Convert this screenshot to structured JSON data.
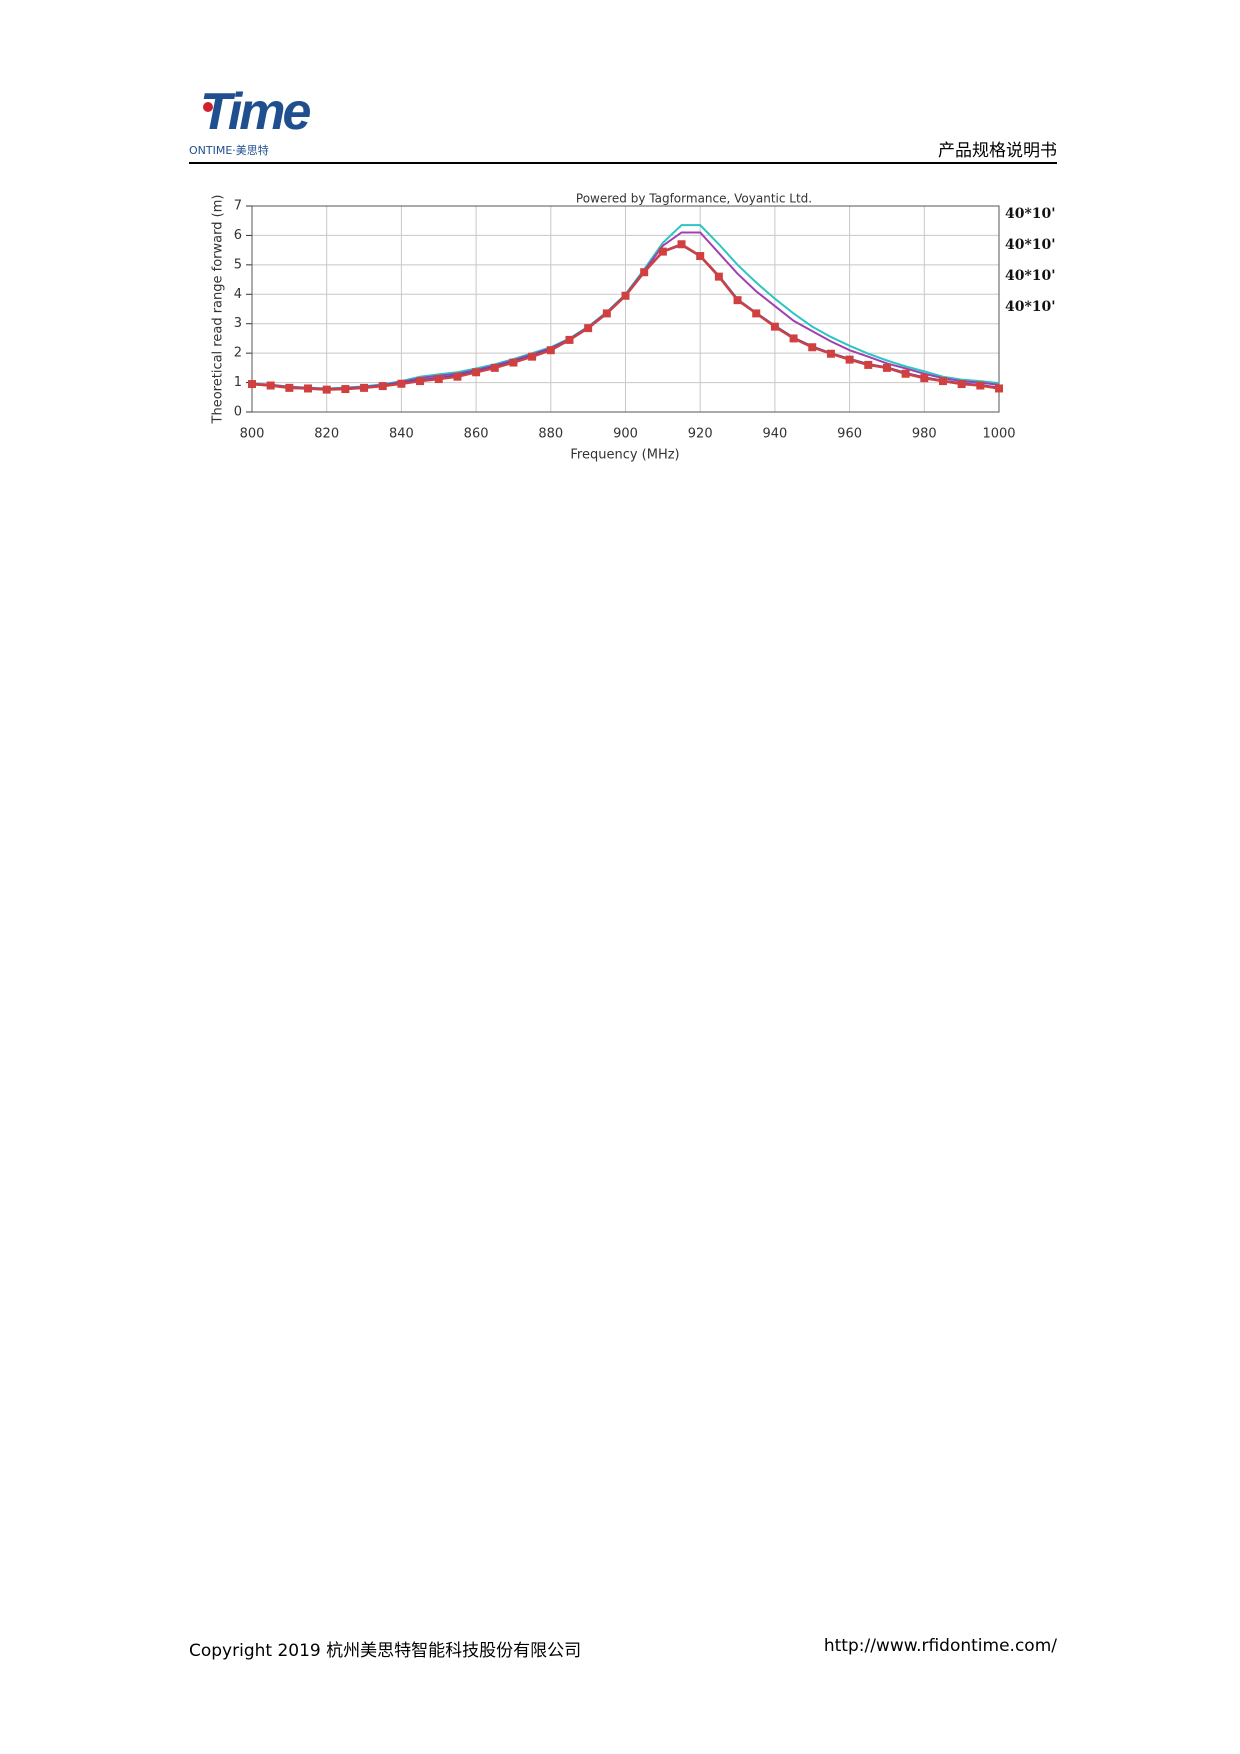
{
  "header": {
    "logo_word": "Time",
    "logo_text": "ONTIME·美思特",
    "title": "产品规格说明书"
  },
  "chart_data": {
    "type": "line",
    "title": "Powered by Tagformance, Voyantic Ltd.",
    "x_label": "Frequency (MHz)",
    "y_label": "Theoretical read range forward (m)",
    "x": [
      800,
      805,
      810,
      815,
      820,
      825,
      830,
      835,
      840,
      845,
      850,
      855,
      860,
      865,
      870,
      875,
      880,
      885,
      890,
      895,
      900,
      905,
      910,
      915,
      920,
      925,
      930,
      935,
      940,
      945,
      950,
      955,
      960,
      965,
      970,
      975,
      980,
      985,
      990,
      995,
      1000
    ],
    "series": [
      {
        "name": "40*10'",
        "color": "#2ec4c0",
        "values": [
          0.97,
          0.93,
          0.86,
          0.83,
          0.8,
          0.83,
          0.87,
          0.94,
          1.05,
          1.2,
          1.28,
          1.35,
          1.48,
          1.62,
          1.8,
          2.0,
          2.2,
          2.5,
          2.9,
          3.4,
          4.0,
          4.85,
          5.75,
          6.35,
          6.35,
          5.7,
          5.0,
          4.4,
          3.85,
          3.35,
          2.9,
          2.55,
          2.25,
          1.98,
          1.75,
          1.55,
          1.38,
          1.2,
          1.1,
          1.05,
          0.98
        ]
      },
      {
        "name": "40*10'",
        "color": "#a040b0",
        "values": [
          0.96,
          0.92,
          0.85,
          0.82,
          0.78,
          0.81,
          0.85,
          0.92,
          1.02,
          1.15,
          1.23,
          1.3,
          1.43,
          1.58,
          1.76,
          1.96,
          2.17,
          2.48,
          2.88,
          3.38,
          3.98,
          4.8,
          5.65,
          6.1,
          6.1,
          5.4,
          4.7,
          4.1,
          3.6,
          3.1,
          2.75,
          2.4,
          2.1,
          1.88,
          1.65,
          1.48,
          1.3,
          1.15,
          1.05,
          1.0,
          0.92
        ]
      },
      {
        "name": "40*10'",
        "color": "#3050c8",
        "values": [
          0.95,
          0.9,
          0.83,
          0.8,
          0.77,
          0.79,
          0.83,
          0.89,
          0.98,
          1.07,
          1.15,
          1.23,
          1.37,
          1.52,
          1.7,
          1.9,
          2.12,
          2.46,
          2.86,
          3.36,
          3.96,
          4.76,
          5.45,
          5.68,
          5.3,
          4.62,
          3.82,
          3.36,
          2.92,
          2.52,
          2.22,
          1.99,
          1.8,
          1.62,
          1.51,
          1.32,
          1.17,
          1.06,
          0.97,
          0.91,
          0.82
        ]
      },
      {
        "name": "40*10'",
        "color": "#d04040",
        "marker": "square",
        "values": [
          0.95,
          0.9,
          0.82,
          0.8,
          0.76,
          0.78,
          0.82,
          0.88,
          0.96,
          1.05,
          1.12,
          1.2,
          1.35,
          1.5,
          1.68,
          1.88,
          2.1,
          2.45,
          2.85,
          3.35,
          3.95,
          4.75,
          5.45,
          5.7,
          5.3,
          4.6,
          3.8,
          3.35,
          2.9,
          2.5,
          2.2,
          1.98,
          1.78,
          1.6,
          1.5,
          1.3,
          1.15,
          1.05,
          0.95,
          0.9,
          0.8
        ]
      }
    ],
    "xlim": [
      800,
      1000
    ],
    "xticks": [
      800,
      820,
      840,
      860,
      880,
      900,
      920,
      940,
      960,
      980,
      1000
    ],
    "ylim": [
      0,
      7
    ],
    "yticks": [
      0,
      1,
      2,
      3,
      4,
      5,
      6,
      7
    ],
    "grid": true,
    "legend": "right"
  },
  "footer": {
    "copyright": "Copyright 2019  杭州美思特智能科技股份有限公司",
    "url": "http://www.rfidontime.com/"
  }
}
